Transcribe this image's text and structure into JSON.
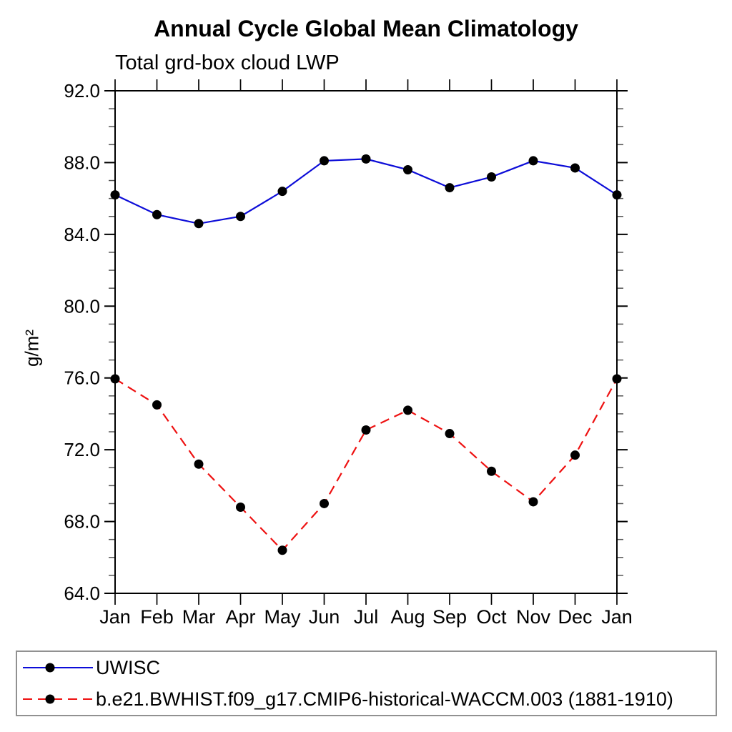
{
  "chart_data": {
    "type": "line",
    "title": "Annual Cycle Global Mean Climatology",
    "subtitle": "Total grd-box cloud LWP",
    "ylabel": "g/m²",
    "x_categories": [
      "Jan",
      "Feb",
      "Mar",
      "Apr",
      "May",
      "Jun",
      "Jul",
      "Aug",
      "Sep",
      "Oct",
      "Nov",
      "Dec",
      "Jan"
    ],
    "ylim": [
      64.0,
      92.0
    ],
    "y_major_ticks": [
      64.0,
      68.0,
      72.0,
      76.0,
      80.0,
      84.0,
      88.0,
      92.0
    ],
    "y_minor_step": 1.0,
    "grid": false,
    "legend_position": "bottom",
    "series": [
      {
        "name": "UWISC",
        "color": "#0d0dd8",
        "line_style": "solid",
        "marker": "filled-circle",
        "marker_color": "#000000",
        "values": [
          86.2,
          85.1,
          84.6,
          85.0,
          86.4,
          88.1,
          88.2,
          87.6,
          86.6,
          87.2,
          88.1,
          87.7,
          86.2
        ]
      },
      {
        "name": "b.e21.BWHIST.f09_g17.CMIP6-historical-WACCM.003 (1881-1910)",
        "color": "#ee1111",
        "line_style": "dashed",
        "marker": "filled-circle",
        "marker_color": "#000000",
        "values": [
          75.95,
          74.5,
          71.2,
          68.8,
          66.4,
          69.0,
          73.1,
          74.2,
          72.9,
          70.8,
          69.1,
          71.7,
          75.95
        ]
      }
    ]
  }
}
